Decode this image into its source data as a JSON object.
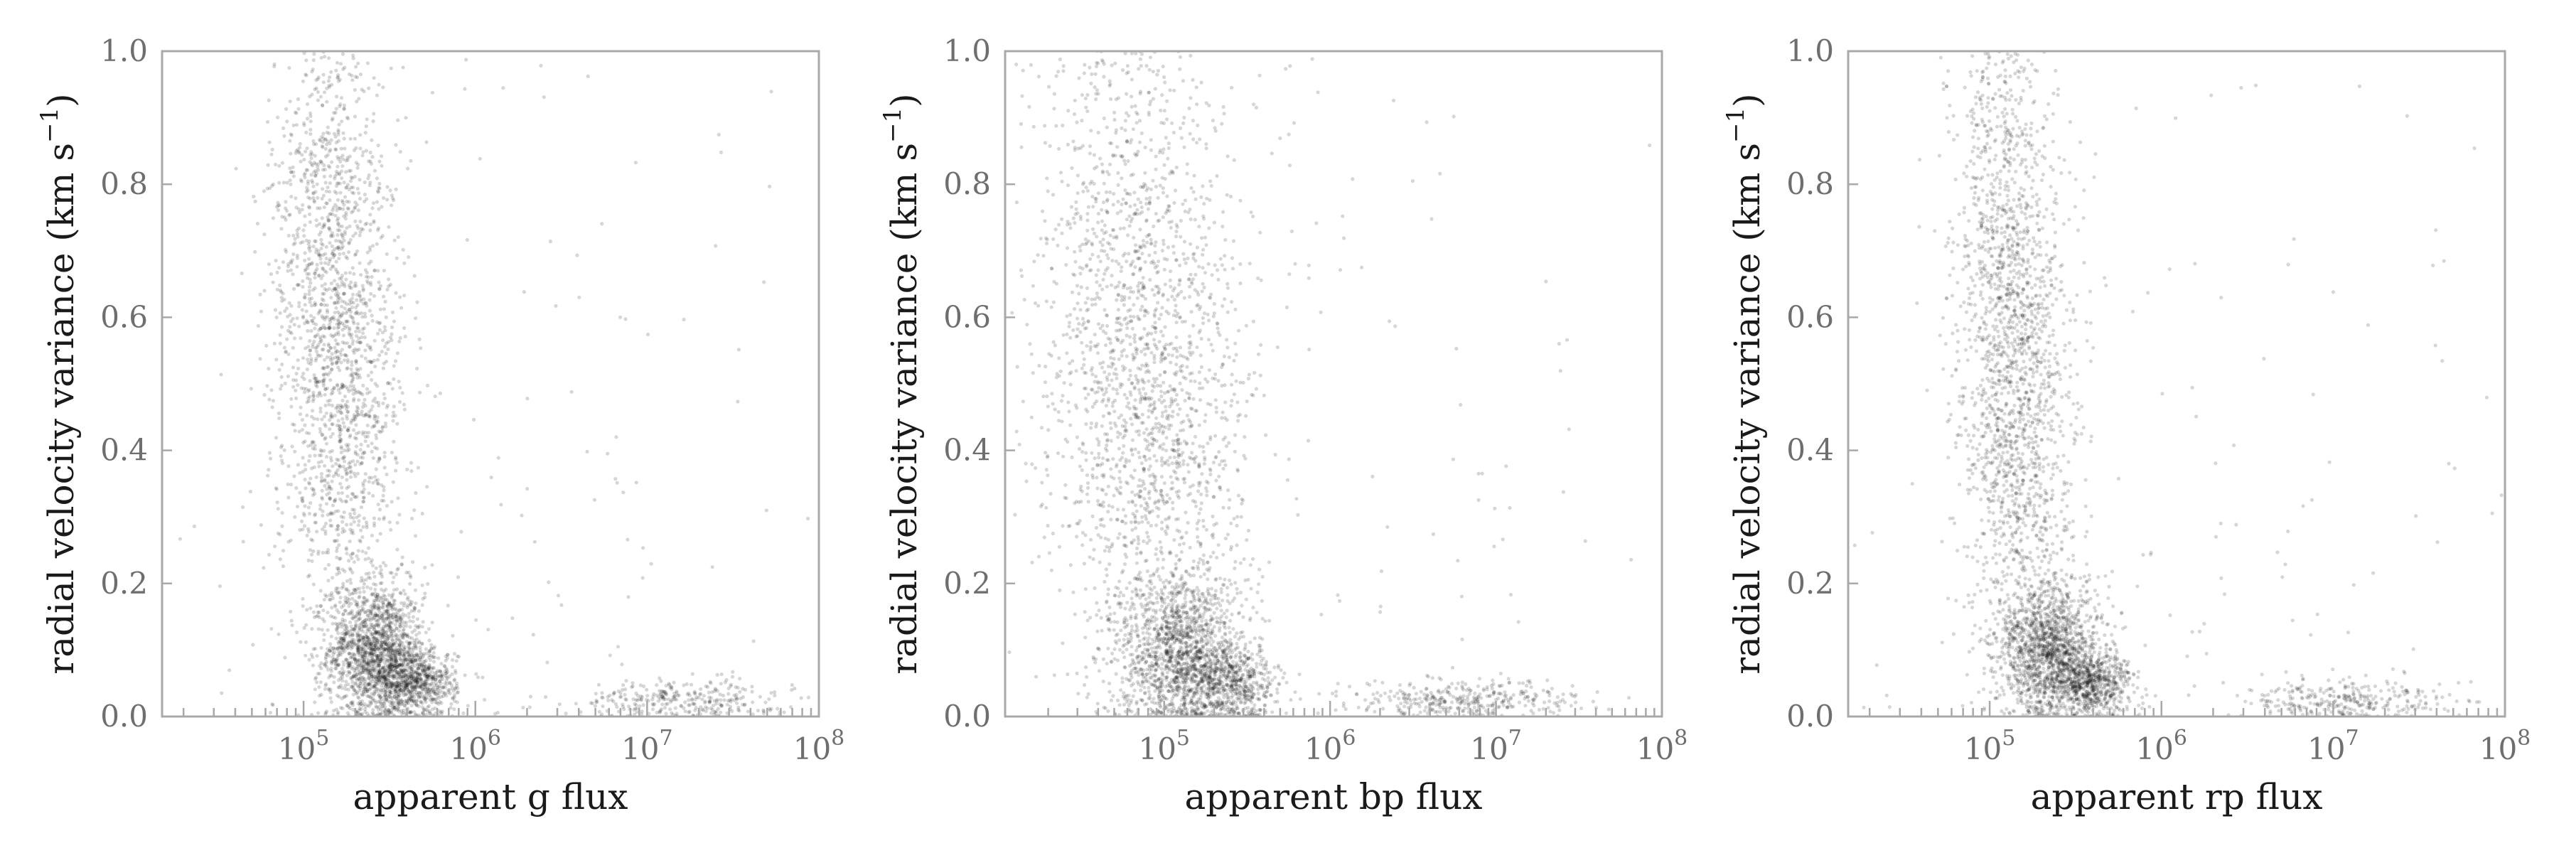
{
  "chart_data": [
    {
      "type": "scatter",
      "xlabel": "apparent g flux",
      "ylabel": "radial velocity variance (km s",
      "ylabel_sup": "−1",
      "ylabel_close": ")",
      "xscale": "log",
      "xlim": [
        15000,
        100000000
      ],
      "ylim": [
        0,
        1.0
      ],
      "xticks": [
        100000,
        1000000,
        10000000,
        100000000
      ],
      "xtick_labels": [
        {
          "base": "10",
          "exp": "5"
        },
        {
          "base": "10",
          "exp": "6"
        },
        {
          "base": "10",
          "exp": "7"
        },
        {
          "base": "10",
          "exp": "8"
        }
      ],
      "yticks": [
        0.0,
        0.2,
        0.4,
        0.6,
        0.8,
        1.0
      ],
      "ytick_labels": [
        "0.0",
        "0.2",
        "0.4",
        "0.6",
        "0.8",
        "1.0"
      ],
      "grid": false,
      "marker_color": "#000000",
      "density_clusters": [
        {
          "x_log10": 5.42,
          "x_spread": 0.14,
          "y": 0.1,
          "y_spread": 0.05,
          "weight": 0.28
        },
        {
          "x_log10": 5.12,
          "x_spread": 0.16,
          "y": 0.72,
          "y_spread": 0.22,
          "weight": 0.18
        },
        {
          "x_log10": 5.25,
          "x_spread": 0.18,
          "y": 0.45,
          "y_spread": 0.2,
          "weight": 0.22
        },
        {
          "x_log10": 5.65,
          "x_spread": 0.12,
          "y": 0.05,
          "y_spread": 0.025,
          "weight": 0.14
        },
        {
          "x_log10": 7.2,
          "x_spread": 0.3,
          "y": 0.025,
          "y_spread": 0.015,
          "weight": 0.06
        },
        {
          "x_log10": 6.2,
          "x_spread": 1.1,
          "y": 0.5,
          "y_spread": 0.5,
          "weight": 0.03
        }
      ]
    },
    {
      "type": "scatter",
      "xlabel": "apparent bp flux",
      "ylabel": "radial velocity variance (km s",
      "ylabel_sup": "−1",
      "ylabel_close": ")",
      "xscale": "log",
      "xlim": [
        11000,
        100000000
      ],
      "ylim": [
        0,
        1.0
      ],
      "xticks": [
        100000,
        1000000,
        10000000,
        100000000
      ],
      "xtick_labels": [
        {
          "base": "10",
          "exp": "5"
        },
        {
          "base": "10",
          "exp": "6"
        },
        {
          "base": "10",
          "exp": "7"
        },
        {
          "base": "10",
          "exp": "8"
        }
      ],
      "yticks": [
        0.0,
        0.2,
        0.4,
        0.6,
        0.8,
        1.0
      ],
      "ytick_labels": [
        "0.0",
        "0.2",
        "0.4",
        "0.6",
        "0.8",
        "1.0"
      ],
      "grid": false,
      "marker_color": "#000000",
      "density_clusters": [
        {
          "x_log10": 5.1,
          "x_spread": 0.18,
          "y": 0.1,
          "y_spread": 0.06,
          "weight": 0.26
        },
        {
          "x_log10": 4.8,
          "x_spread": 0.3,
          "y": 0.7,
          "y_spread": 0.25,
          "weight": 0.2
        },
        {
          "x_log10": 4.95,
          "x_spread": 0.3,
          "y": 0.4,
          "y_spread": 0.2,
          "weight": 0.22
        },
        {
          "x_log10": 5.4,
          "x_spread": 0.15,
          "y": 0.05,
          "y_spread": 0.03,
          "weight": 0.12
        },
        {
          "x_log10": 6.8,
          "x_spread": 0.35,
          "y": 0.025,
          "y_spread": 0.015,
          "weight": 0.07
        },
        {
          "x_log10": 6.0,
          "x_spread": 1.2,
          "y": 0.5,
          "y_spread": 0.5,
          "weight": 0.03
        }
      ]
    },
    {
      "type": "scatter",
      "xlabel": "apparent rp flux",
      "ylabel": "radial velocity variance (km s",
      "ylabel_sup": "−1",
      "ylabel_close": ")",
      "xscale": "log",
      "xlim": [
        15000,
        100000000
      ],
      "ylim": [
        0,
        1.0
      ],
      "xticks": [
        100000,
        1000000,
        10000000,
        100000000
      ],
      "xtick_labels": [
        {
          "base": "10",
          "exp": "5"
        },
        {
          "base": "10",
          "exp": "6"
        },
        {
          "base": "10",
          "exp": "7"
        },
        {
          "base": "10",
          "exp": "8"
        }
      ],
      "yticks": [
        0.0,
        0.2,
        0.4,
        0.6,
        0.8,
        1.0
      ],
      "ytick_labels": [
        "0.0",
        "0.2",
        "0.4",
        "0.6",
        "0.8",
        "1.0"
      ],
      "grid": false,
      "marker_color": "#000000",
      "density_clusters": [
        {
          "x_log10": 5.35,
          "x_spread": 0.15,
          "y": 0.1,
          "y_spread": 0.05,
          "weight": 0.28
        },
        {
          "x_log10": 5.08,
          "x_spread": 0.14,
          "y": 0.72,
          "y_spread": 0.22,
          "weight": 0.18
        },
        {
          "x_log10": 5.18,
          "x_spread": 0.17,
          "y": 0.42,
          "y_spread": 0.2,
          "weight": 0.22
        },
        {
          "x_log10": 5.6,
          "x_spread": 0.12,
          "y": 0.05,
          "y_spread": 0.025,
          "weight": 0.13
        },
        {
          "x_log10": 7.1,
          "x_spread": 0.32,
          "y": 0.025,
          "y_spread": 0.015,
          "weight": 0.06
        },
        {
          "x_log10": 6.2,
          "x_spread": 1.1,
          "y": 0.5,
          "y_spread": 0.5,
          "weight": 0.03
        }
      ]
    }
  ]
}
